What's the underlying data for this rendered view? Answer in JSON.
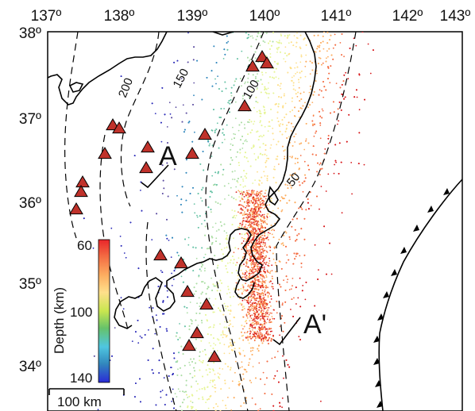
{
  "map": {
    "lon_ticks": [
      "137º",
      "138º",
      "139º",
      "140º",
      "141º",
      "142º",
      "143º"
    ],
    "lat_ticks": [
      "38º",
      "37º",
      "36º",
      "35º",
      "34º"
    ],
    "depth_contours": [
      {
        "label": "200"
      },
      {
        "label": "150"
      },
      {
        "label": "100"
      },
      {
        "label": "50"
      }
    ],
    "profile": {
      "start": "A",
      "end": "A'"
    },
    "colorbar": {
      "title": "Depth (km)",
      "ticks": [
        "60",
        "100",
        "140"
      ],
      "min_depth_km": 60,
      "max_depth_km": 140,
      "colors": [
        "#d7191c",
        "#f46d43",
        "#fdae61",
        "#fee08b",
        "#e6f598",
        "#abdda4",
        "#66c2a5",
        "#3288bd",
        "#5e4fa2",
        "#2b2bb8"
      ]
    },
    "scale_bar": {
      "label": "100 km"
    },
    "colors": {
      "volcano_fill": "#c0322b",
      "coastline": "#000000",
      "trench": "#000000"
    }
  }
}
